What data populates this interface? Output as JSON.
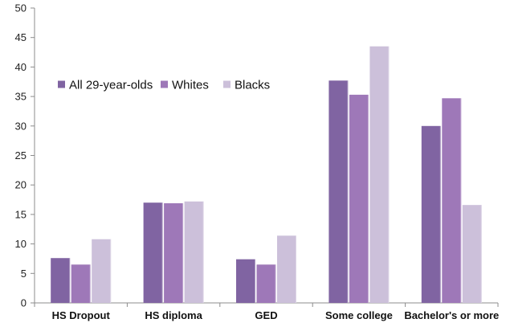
{
  "chart_data": {
    "type": "bar",
    "title": "",
    "xlabel": "",
    "ylabel": "",
    "ylim": [
      0,
      50
    ],
    "yticks": [
      0,
      5,
      10,
      15,
      20,
      25,
      30,
      35,
      40,
      45,
      50
    ],
    "grid": false,
    "legend_position": "top-left",
    "categories": [
      "HS Dropout",
      "HS diploma",
      "GED",
      "Some college",
      "Bachelor's or more"
    ],
    "series": [
      {
        "name": "All 29-year-olds",
        "color": "#8064a2",
        "values": [
          7.6,
          17.0,
          7.4,
          37.7,
          30.0
        ]
      },
      {
        "name": "Whites",
        "color": "#9e78b8",
        "values": [
          6.5,
          16.9,
          6.5,
          35.3,
          34.7
        ]
      },
      {
        "name": "Blacks",
        "color": "#ccc0da",
        "values": [
          10.8,
          17.2,
          11.4,
          43.5,
          16.6
        ]
      }
    ]
  }
}
